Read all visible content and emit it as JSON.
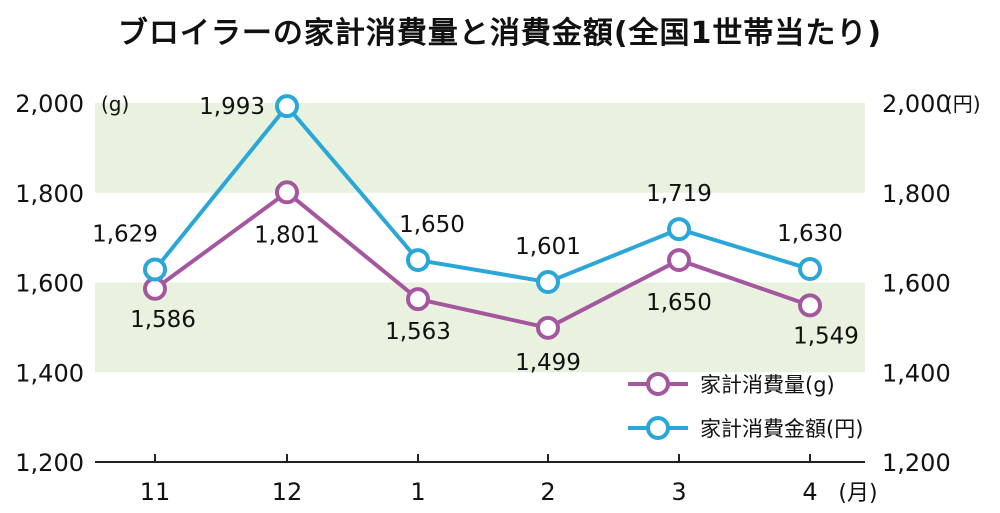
{
  "chart_data": {
    "type": "line",
    "title": "ブロイラーの家計消費量と消費金額(全国1世帯当たり)",
    "categories": [
      "11",
      "12",
      "1",
      "2",
      "3",
      "4"
    ],
    "x_unit": "(月)",
    "y_left": {
      "unit": "(g)",
      "ylim": [
        1200,
        2000
      ],
      "ticks": [
        "1,200",
        "1,400",
        "1,600",
        "1,800",
        "2,000"
      ]
    },
    "y_right": {
      "unit": "(円)",
      "ylim": [
        1200,
        2000
      ],
      "ticks": [
        "1,200",
        "1,400",
        "1,600",
        "1,800",
        "2,000"
      ]
    },
    "bands": [
      [
        1400,
        1600
      ],
      [
        1800,
        2000
      ]
    ],
    "series": [
      {
        "name": "家計消費量(g)",
        "axis": "left",
        "color": "#a4579e",
        "values": [
          1586,
          1801,
          1563,
          1499,
          1650,
          1549
        ],
        "labels": [
          "1,586",
          "1,801",
          "1,563",
          "1,499",
          "1,650",
          "1,549"
        ]
      },
      {
        "name": "家計消費金額(円)",
        "axis": "right",
        "color": "#2aa7d8",
        "values": [
          1629,
          1993,
          1650,
          1601,
          1719,
          1630
        ],
        "labels": [
          "1,629",
          "1,993",
          "1,650",
          "1,601",
          "1,719",
          "1,630"
        ]
      }
    ],
    "legend": "bottom-right",
    "band_color": "#e9f2df"
  }
}
